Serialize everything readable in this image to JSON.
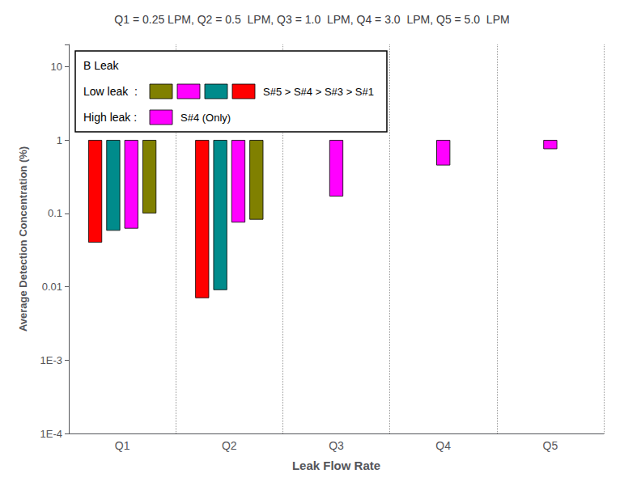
{
  "chart_data": {
    "type": "bar",
    "title": "Q1 = 0.25 LPM, Q2 = 0.5  LPM, Q3 = 1.0  LPM, Q4 = 3.0  LPM, Q5 = 5.0  LPM",
    "xlabel": "Leak Flow Rate",
    "ylabel": "Average Detection Concentration (%)",
    "categories": [
      "Q1",
      "Q2",
      "Q3",
      "Q4",
      "Q5"
    ],
    "series": [
      {
        "color": "#FF0000",
        "values": [
          0.04,
          0.007,
          null,
          null,
          null
        ]
      },
      {
        "color": "#008B8B",
        "values": [
          0.058,
          0.009,
          null,
          null,
          null
        ]
      },
      {
        "color": "#FF00FF",
        "values": [
          0.062,
          0.075,
          null,
          null,
          null
        ]
      },
      {
        "color": "#808000",
        "values": [
          0.1,
          0.082,
          null,
          null,
          null
        ]
      },
      {
        "color": "#FF00FF",
        "values": [
          null,
          null,
          0.17,
          0.45,
          0.75
        ]
      }
    ],
    "log": "y",
    "ylim": [
      0.0001,
      20.0
    ],
    "yticks": [
      {
        "value": 0.0001,
        "label": "1E-4"
      },
      {
        "value": 0.001,
        "label": "1E-3"
      },
      0.01,
      0.1,
      1,
      10
    ],
    "grid": "x",
    "annotations": [
      "B Leak",
      "Low leak  :",
      "S#5 > S#4 > S#3 > S#1",
      "High leak :",
      "S#4 (Only)"
    ]
  }
}
